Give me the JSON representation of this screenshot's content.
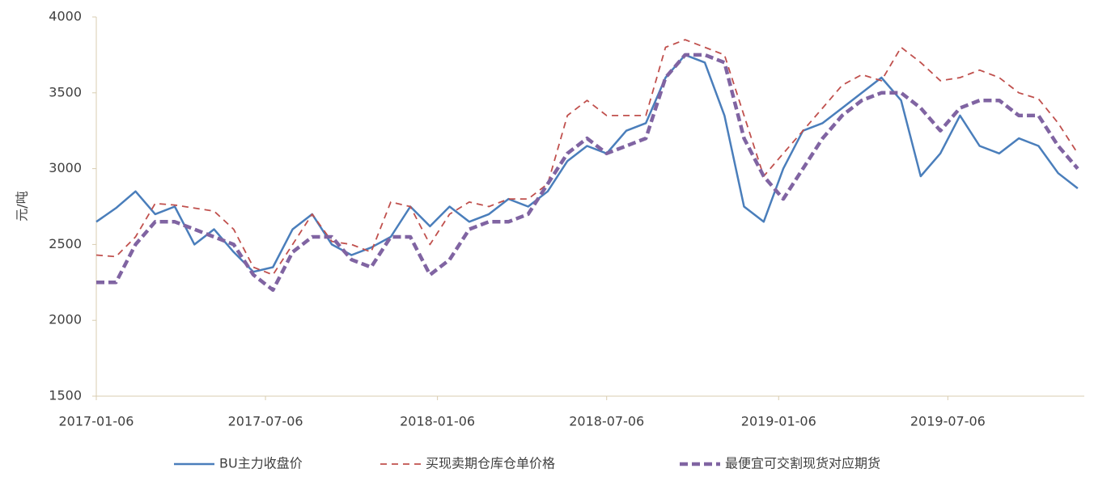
{
  "chart_data": {
    "type": "line",
    "y_label": "元/吨",
    "x": [
      "2017-01-06",
      "2017-01-27",
      "2017-02-17",
      "2017-03-10",
      "2017-03-31",
      "2017-04-21",
      "2017-05-12",
      "2017-06-02",
      "2017-06-23",
      "2017-07-14",
      "2017-08-04",
      "2017-08-25",
      "2017-09-15",
      "2017-10-06",
      "2017-10-27",
      "2017-11-17",
      "2017-12-08",
      "2017-12-29",
      "2018-01-19",
      "2018-02-09",
      "2018-03-02",
      "2018-03-23",
      "2018-04-13",
      "2018-05-04",
      "2018-05-25",
      "2018-06-15",
      "2018-07-06",
      "2018-07-27",
      "2018-08-17",
      "2018-09-07",
      "2018-09-28",
      "2018-10-19",
      "2018-11-09",
      "2018-11-30",
      "2018-12-21",
      "2019-01-11",
      "2019-02-01",
      "2019-02-22",
      "2019-03-15",
      "2019-04-05",
      "2019-04-26",
      "2019-05-17",
      "2019-06-07",
      "2019-06-28",
      "2019-07-19",
      "2019-08-09",
      "2019-08-30",
      "2019-09-20",
      "2019-10-11",
      "2019-11-01",
      "2019-11-22"
    ],
    "series": [
      {
        "name": "BU主力收盘价",
        "color": "#4a7ebb",
        "style": "solid",
        "values": [
          2650,
          2740,
          2850,
          2700,
          2750,
          2500,
          2600,
          2450,
          2320,
          2350,
          2600,
          2700,
          2500,
          2430,
          2480,
          2550,
          2750,
          2620,
          2750,
          2650,
          2700,
          2800,
          2750,
          2850,
          3050,
          3150,
          3100,
          3250,
          3300,
          3600,
          3750,
          3700,
          3350,
          2750,
          2650,
          3000,
          3250,
          3300,
          3400,
          3500,
          3600,
          3450,
          2950,
          3100,
          3350,
          3150,
          3100,
          3200,
          3150,
          2970,
          2870
        ]
      },
      {
        "name": "买现卖期仓库仓单价格",
        "color": "#c0504d",
        "style": "dashed",
        "values": [
          2430,
          2420,
          2550,
          2770,
          2760,
          2740,
          2720,
          2600,
          2350,
          2300,
          2500,
          2700,
          2520,
          2500,
          2450,
          2780,
          2750,
          2500,
          2700,
          2780,
          2750,
          2800,
          2800,
          2900,
          3350,
          3450,
          3350,
          3350,
          3350,
          3800,
          3850,
          3800,
          3750,
          3350,
          2950,
          3100,
          3250,
          3400,
          3550,
          3620,
          3580,
          3800,
          3700,
          3580,
          3600,
          3650,
          3600,
          3500,
          3460,
          3300,
          3100
        ]
      },
      {
        "name": "最便宜可交割现货对应期货",
        "color": "#8064a2",
        "style": "thick-dashed",
        "values": [
          2250,
          2250,
          2500,
          2650,
          2650,
          2600,
          2550,
          2500,
          2300,
          2200,
          2450,
          2550,
          2550,
          2400,
          2350,
          2550,
          2550,
          2300,
          2400,
          2600,
          2650,
          2650,
          2700,
          2900,
          3100,
          3200,
          3100,
          3150,
          3200,
          3600,
          3750,
          3750,
          3700,
          3200,
          2950,
          2800,
          3000,
          3200,
          3350,
          3450,
          3500,
          3500,
          3400,
          3250,
          3400,
          3450,
          3450,
          3350,
          3350,
          3150,
          3000
        ]
      }
    ],
    "xlim": [
      "2017-01-06",
      "2019-11-29"
    ],
    "xticks": [
      "2017-01-06",
      "2017-07-06",
      "2018-01-06",
      "2018-07-06",
      "2019-01-06",
      "2019-07-06"
    ],
    "ylim": [
      1500,
      4000
    ],
    "yticks": [
      1500,
      2000,
      2500,
      3000,
      3500,
      4000
    ],
    "legend": "bottom"
  }
}
